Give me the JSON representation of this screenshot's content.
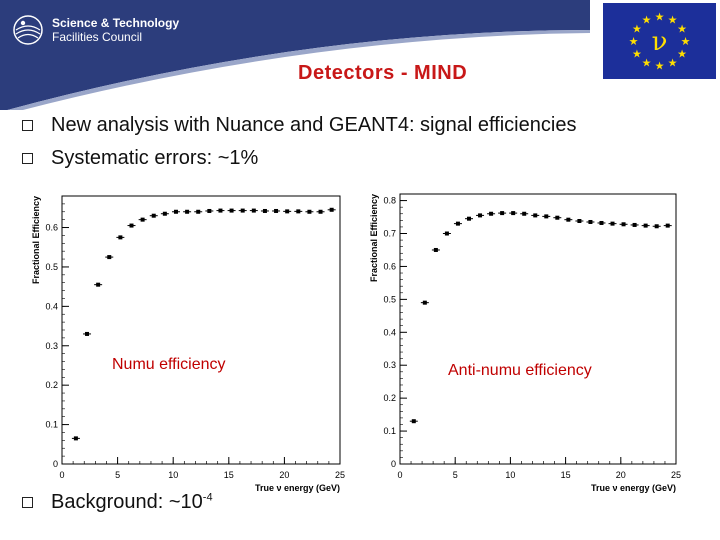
{
  "header": {
    "org_line1": "Science & Technology",
    "org_line2": "Facilities Council",
    "flag_symbol": "ν",
    "title": "Detectors - MIND"
  },
  "bullets": [
    "New analysis with Nuance and GEANT4: signal efficiencies",
    "Systematic errors: ~1%"
  ],
  "background_bullet": {
    "text": "Background: ~10",
    "exponent": "-4"
  },
  "colors": {
    "header_blue": "#2c3d7c",
    "title_red": "#c81818",
    "label_red": "#c00000",
    "eu_blue": "#1c2f9a",
    "star_yellow": "#ffde00"
  },
  "chart_data": [
    {
      "type": "scatter",
      "overlay_label": "Numu efficiency",
      "xlabel": "True ν energy (GeV)",
      "ylabel": "Fractional Efficiency",
      "xlim": [
        0,
        25
      ],
      "ylim": [
        0,
        0.68
      ],
      "xticks": [
        0,
        5,
        10,
        15,
        20,
        25
      ],
      "yticks": [
        0.1,
        0.2,
        0.3,
        0.4,
        0.5,
        0.6
      ],
      "x": [
        1.25,
        2.25,
        3.25,
        4.25,
        5.25,
        6.25,
        7.25,
        8.25,
        9.25,
        10.25,
        11.25,
        12.25,
        13.25,
        14.25,
        15.25,
        16.25,
        17.25,
        18.25,
        19.25,
        20.25,
        21.25,
        22.25,
        23.25,
        24.25
      ],
      "y": [
        0.065,
        0.33,
        0.455,
        0.525,
        0.575,
        0.605,
        0.62,
        0.63,
        0.635,
        0.64,
        0.64,
        0.64,
        0.642,
        0.643,
        0.643,
        0.643,
        0.643,
        0.642,
        0.642,
        0.641,
        0.641,
        0.64,
        0.64,
        0.645
      ]
    },
    {
      "type": "scatter",
      "overlay_label": "Anti-numu efficiency",
      "xlabel": "True ν energy (GeV)",
      "ylabel": "Fractional Efficiency",
      "xlim": [
        0,
        25
      ],
      "ylim": [
        0,
        0.82
      ],
      "xticks": [
        0,
        5,
        10,
        15,
        20,
        25
      ],
      "yticks": [
        0.1,
        0.2,
        0.3,
        0.4,
        0.5,
        0.6,
        0.7,
        0.8
      ],
      "x": [
        1.25,
        2.25,
        3.25,
        4.25,
        5.25,
        6.25,
        7.25,
        8.25,
        9.25,
        10.25,
        11.25,
        12.25,
        13.25,
        14.25,
        15.25,
        16.25,
        17.25,
        18.25,
        19.25,
        20.25,
        21.25,
        22.25,
        23.25,
        24.25
      ],
      "y": [
        0.13,
        0.49,
        0.65,
        0.7,
        0.73,
        0.745,
        0.755,
        0.76,
        0.762,
        0.762,
        0.76,
        0.755,
        0.752,
        0.748,
        0.742,
        0.738,
        0.735,
        0.732,
        0.73,
        0.728,
        0.726,
        0.724,
        0.722,
        0.724
      ]
    }
  ]
}
